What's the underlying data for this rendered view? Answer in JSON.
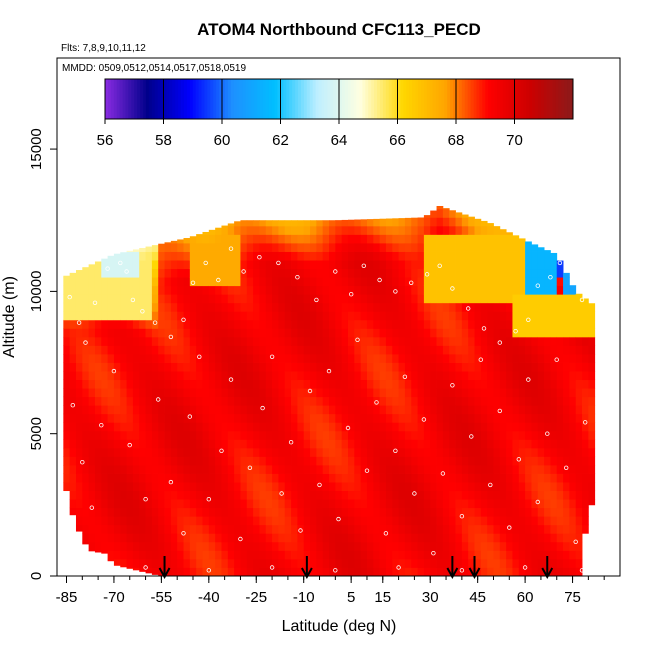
{
  "chart_data": {
    "type": "heatmap",
    "title": "ATOM4 Northbound CFC113_PECD",
    "flights_label": "Flts: 7,8,9,10,11,12",
    "dates_label": "MMDD: 0509,0512,0514,0517,0518,0519",
    "xlabel": "Latitude (deg N)",
    "ylabel": "Altitude (m)",
    "xlim": [
      -88,
      90
    ],
    "ylim": [
      0,
      18200
    ],
    "x_ticks": [
      -85,
      -70,
      -55,
      -40,
      -25,
      -10,
      5,
      15,
      30,
      45,
      60,
      75
    ],
    "x_tick_labels": [
      "-85",
      "-70",
      "-55",
      "-40",
      "-25",
      "-10",
      "5",
      "15",
      "30",
      "45",
      "60",
      "75"
    ],
    "y_ticks": [
      0,
      5000,
      10000,
      15000
    ],
    "y_tick_labels": [
      "0",
      "5000",
      "10000",
      "15000"
    ],
    "colorbar": {
      "min": 56,
      "max": 72,
      "ticks": [
        56,
        58,
        60,
        62,
        64,
        66,
        68,
        70
      ],
      "tick_labels": [
        "56",
        "58",
        "60",
        "62",
        "64",
        "66",
        "68",
        "70"
      ],
      "colors": [
        "#8a2be2",
        "#00008b",
        "#0000ff",
        "#1e90ff",
        "#00bfff",
        "#bfefff",
        "#ffffe0",
        "#ffd700",
        "#ffa500",
        "#ff0000",
        "#cc0000",
        "#8b1a1a"
      ]
    },
    "field": {
      "background_value": 69.3,
      "ceiling_by_latitude": [
        {
          "lat": -86,
          "top": 10500
        },
        {
          "lat": -70,
          "top": 11300
        },
        {
          "lat": -46,
          "top": 11900
        },
        {
          "lat": -30,
          "top": 12500
        },
        {
          "lat": 0,
          "top": 12500
        },
        {
          "lat": 28,
          "top": 12600
        },
        {
          "lat": 33,
          "top": 13000
        },
        {
          "lat": 49,
          "top": 12400
        },
        {
          "lat": 62,
          "top": 11700
        },
        {
          "lat": 70,
          "top": 11300
        },
        {
          "lat": 76,
          "top": 10000
        },
        {
          "lat": 82,
          "top": 9500
        }
      ],
      "floor_by_latitude": [
        {
          "lat": -86,
          "bottom": 3500
        },
        {
          "lat": -84,
          "bottom": 2500
        },
        {
          "lat": -82,
          "bottom": 1800
        },
        {
          "lat": -78,
          "bottom": 900
        },
        {
          "lat": -73,
          "bottom": 800
        },
        {
          "lat": -70,
          "bottom": 400
        },
        {
          "lat": -55,
          "bottom": 0
        },
        {
          "lat": 77,
          "bottom": 0
        },
        {
          "lat": 79,
          "bottom": 1500
        },
        {
          "lat": 82,
          "bottom": 3000
        }
      ],
      "low_value_regions": [
        {
          "lat_min": -86,
          "lat_max": -58,
          "alt_min": 9000,
          "alt_max": 11300,
          "value": 65.5
        },
        {
          "lat_min": -74,
          "lat_max": -62,
          "alt_min": 10400,
          "alt_max": 11300,
          "value": 63.8
        },
        {
          "lat_min": -45,
          "lat_max": -30,
          "alt_min": 10300,
          "alt_max": 12000,
          "value": 67.5
        },
        {
          "lat_min": 28,
          "lat_max": 62,
          "alt_min": 9500,
          "alt_max": 12000,
          "value": 66.8
        },
        {
          "lat_min": 56,
          "lat_max": 82,
          "alt_min": 8500,
          "alt_max": 10000,
          "value": 66.5
        },
        {
          "lat_min": 60,
          "lat_max": 70,
          "alt_min": 10000,
          "alt_max": 11800,
          "value": 61.5
        },
        {
          "lat_min": 70,
          "lat_max": 75,
          "alt_min": 10600,
          "alt_max": 11300,
          "value": 59.5
        },
        {
          "lat_min": 72,
          "lat_max": 76,
          "alt_min": 9800,
          "alt_max": 11000,
          "value": 61.0
        }
      ]
    },
    "arrows_lat": [
      -54,
      -9,
      37,
      44,
      67
    ],
    "sample_points": [
      [
        -84,
        9800
      ],
      [
        -81,
        8900
      ],
      [
        -79,
        8200
      ],
      [
        -76,
        9600
      ],
      [
        -72,
        10800
      ],
      [
        -68,
        11000
      ],
      [
        -66,
        10700
      ],
      [
        -64,
        9700
      ],
      [
        -61,
        9300
      ],
      [
        -57,
        8900
      ],
      [
        -52,
        8400
      ],
      [
        -48,
        9000
      ],
      [
        -45,
        10300
      ],
      [
        -41,
        11000
      ],
      [
        -37,
        10400
      ],
      [
        -33,
        11500
      ],
      [
        -29,
        10700
      ],
      [
        -24,
        11200
      ],
      [
        -18,
        11000
      ],
      [
        -12,
        10500
      ],
      [
        -6,
        9700
      ],
      [
        0,
        10700
      ],
      [
        5,
        9900
      ],
      [
        9,
        10900
      ],
      [
        14,
        10400
      ],
      [
        19,
        10000
      ],
      [
        24,
        10300
      ],
      [
        29,
        10600
      ],
      [
        33,
        10900
      ],
      [
        37,
        10100
      ],
      [
        42,
        9400
      ],
      [
        47,
        8700
      ],
      [
        52,
        8200
      ],
      [
        57,
        8600
      ],
      [
        61,
        9000
      ],
      [
        64,
        10200
      ],
      [
        68,
        10500
      ],
      [
        71,
        11000
      ],
      [
        74,
        10800
      ],
      [
        78,
        9700
      ],
      [
        -83,
        6000
      ],
      [
        -80,
        4000
      ],
      [
        -77,
        2400
      ],
      [
        -74,
        5300
      ],
      [
        -70,
        7200
      ],
      [
        -65,
        4600
      ],
      [
        -60,
        2700
      ],
      [
        -56,
        6200
      ],
      [
        -52,
        3300
      ],
      [
        -48,
        1500
      ],
      [
        -46,
        5600
      ],
      [
        -43,
        7700
      ],
      [
        -40,
        2700
      ],
      [
        -36,
        4400
      ],
      [
        -33,
        6900
      ],
      [
        -30,
        1300
      ],
      [
        -27,
        3800
      ],
      [
        -23,
        5900
      ],
      [
        -20,
        7700
      ],
      [
        -17,
        2900
      ],
      [
        -14,
        4700
      ],
      [
        -11,
        1600
      ],
      [
        -8,
        6500
      ],
      [
        -5,
        3200
      ],
      [
        -2,
        7200
      ],
      [
        1,
        2000
      ],
      [
        4,
        5200
      ],
      [
        7,
        8300
      ],
      [
        10,
        3700
      ],
      [
        13,
        6100
      ],
      [
        16,
        1500
      ],
      [
        19,
        4400
      ],
      [
        22,
        7000
      ],
      [
        25,
        2900
      ],
      [
        28,
        5500
      ],
      [
        31,
        800
      ],
      [
        34,
        3600
      ],
      [
        37,
        6700
      ],
      [
        40,
        2100
      ],
      [
        43,
        4900
      ],
      [
        46,
        7600
      ],
      [
        49,
        3200
      ],
      [
        52,
        5800
      ],
      [
        55,
        1700
      ],
      [
        58,
        4100
      ],
      [
        61,
        6900
      ],
      [
        64,
        2600
      ],
      [
        67,
        5000
      ],
      [
        70,
        7600
      ],
      [
        73,
        3800
      ],
      [
        76,
        1200
      ],
      [
        79,
        5400
      ],
      [
        -60,
        300
      ],
      [
        -40,
        200
      ],
      [
        -20,
        300
      ],
      [
        0,
        200
      ],
      [
        20,
        300
      ],
      [
        40,
        200
      ],
      [
        60,
        300
      ],
      [
        78,
        200
      ]
    ]
  }
}
